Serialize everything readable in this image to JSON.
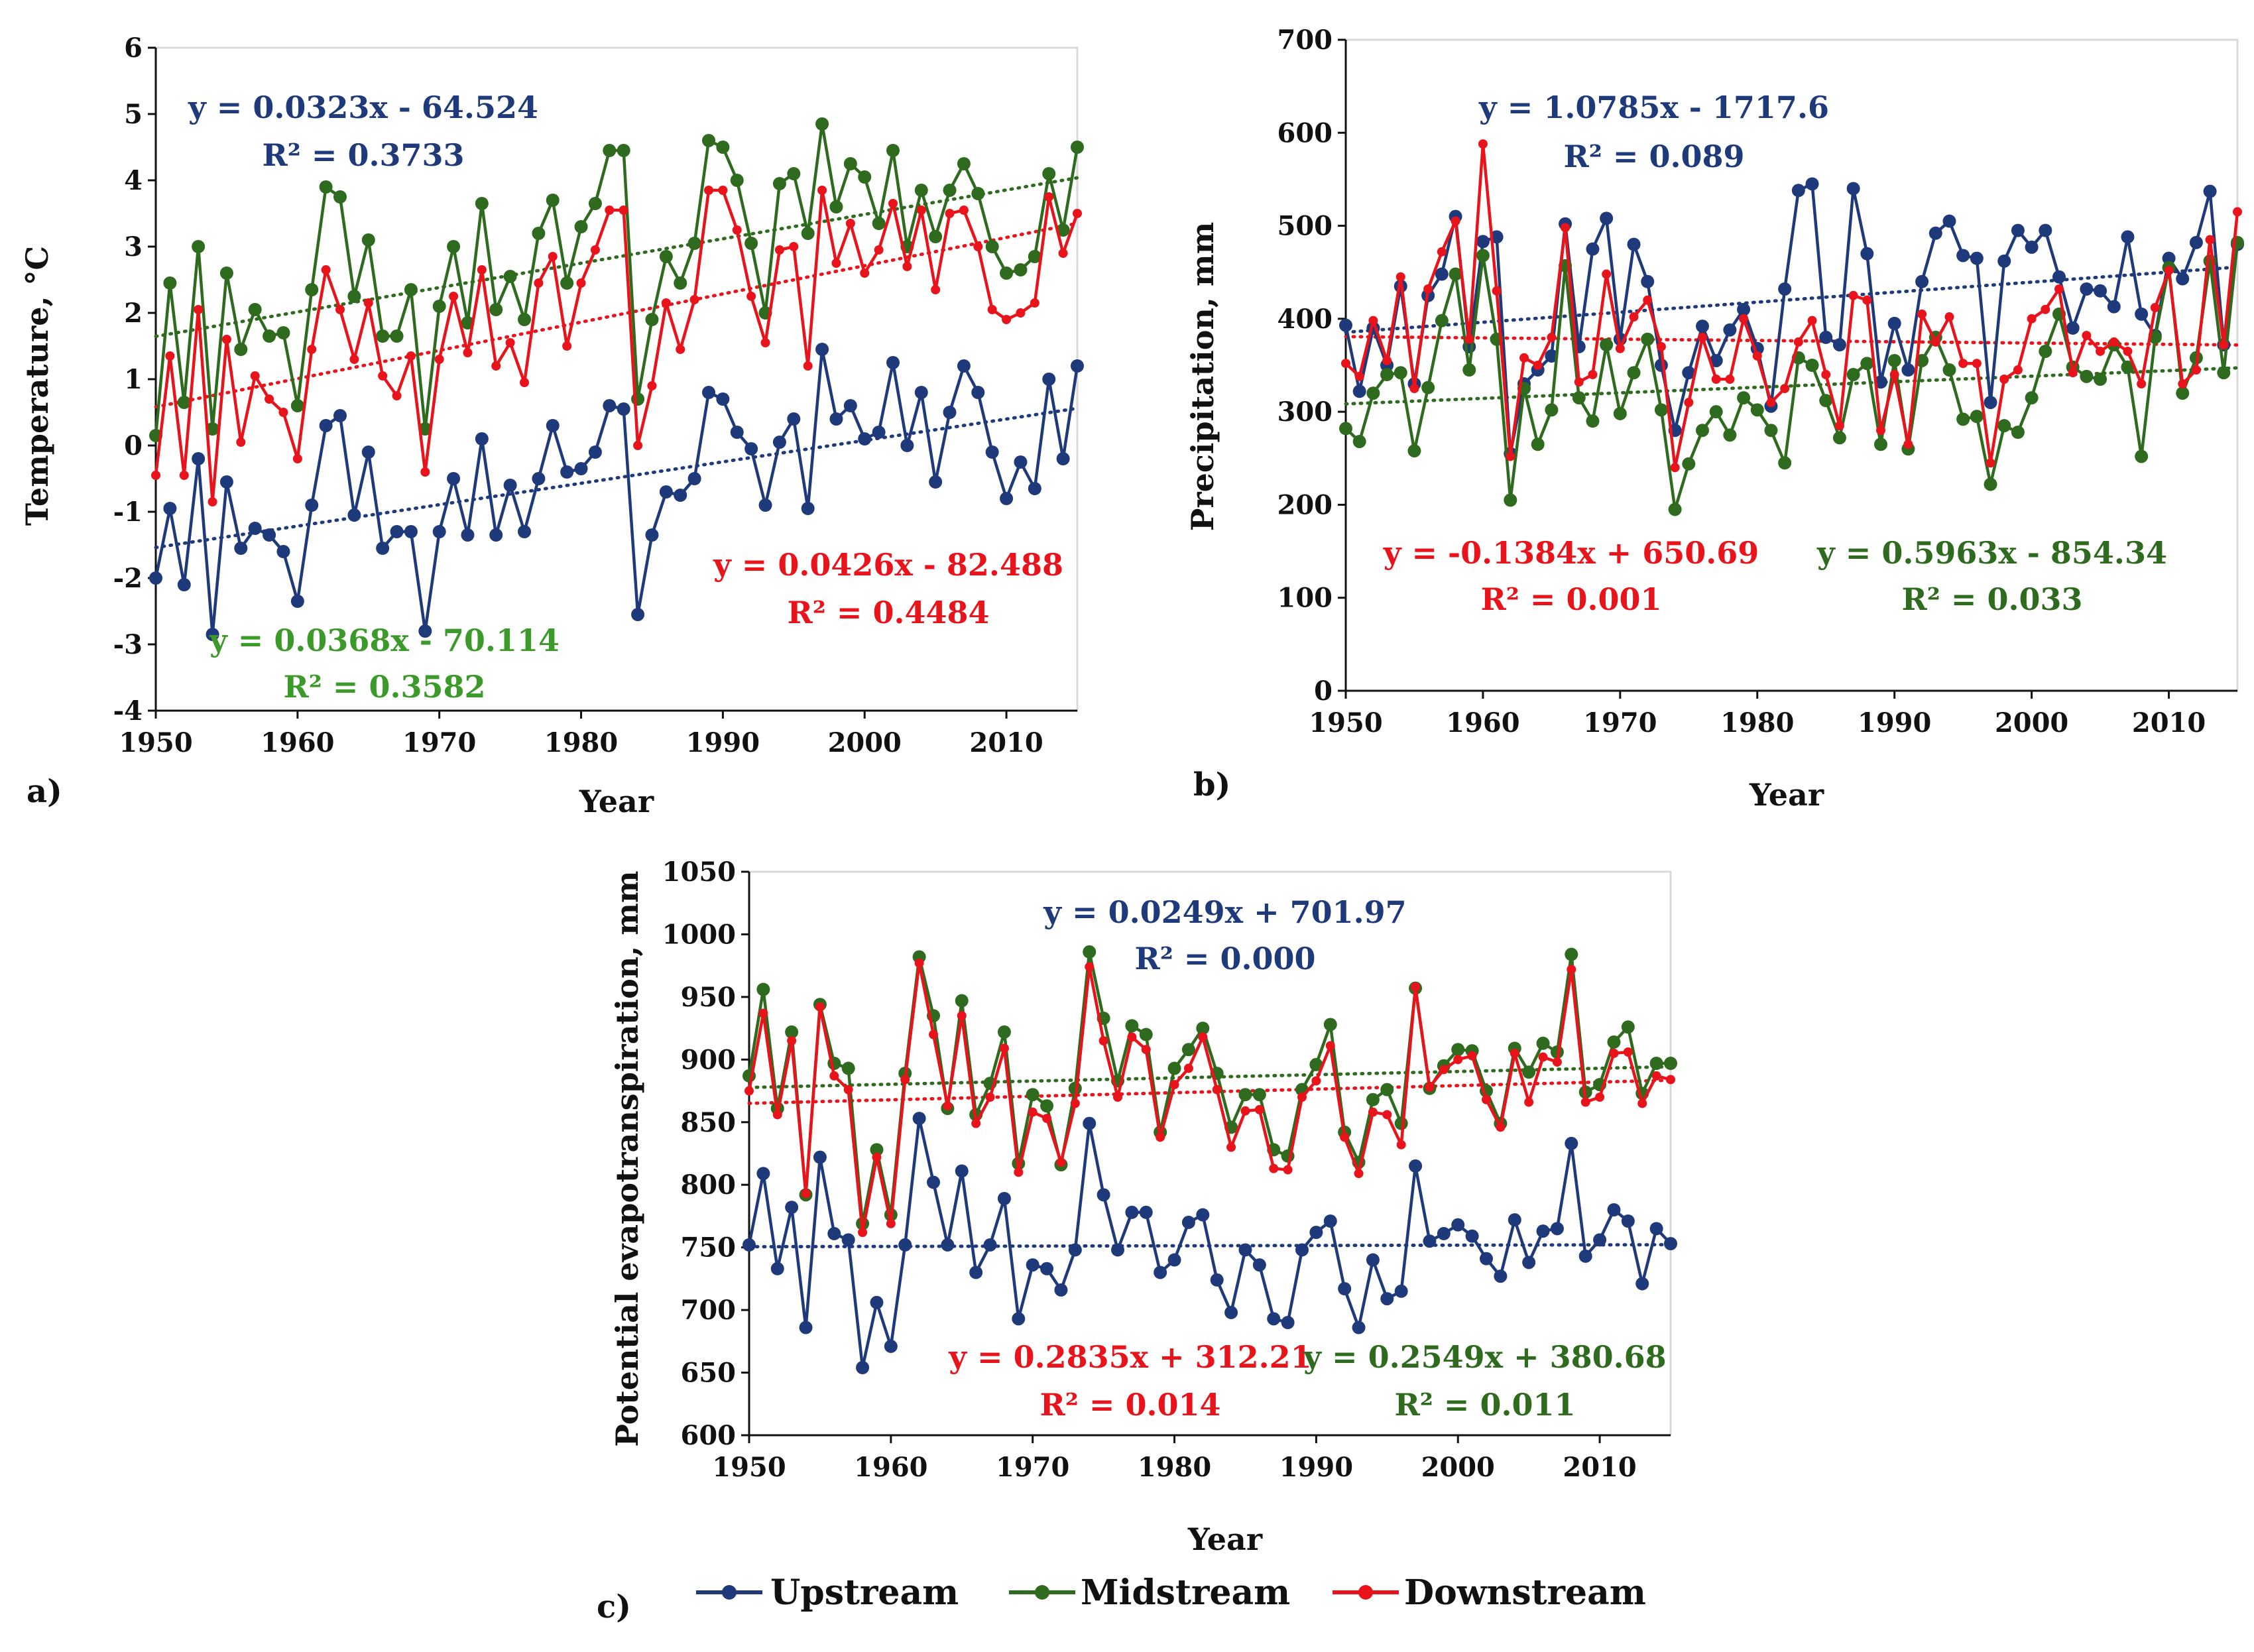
{
  "colors": {
    "Upstream": "#1f3a7a",
    "Midstream": "#2e6b1e",
    "Downstream": "#e8131b",
    "eq_mid_a": "#3c9a2a"
  },
  "legend": [
    "Upstream",
    "Midstream",
    "Downstream"
  ],
  "chart_data": [
    {
      "type": "line",
      "panel_label": "a)",
      "xlabel": "Year",
      "ylabel": "Temperature, °C",
      "xlim": [
        1950,
        2015
      ],
      "ylim": [
        -4,
        6
      ],
      "xticks": [
        1950,
        1960,
        1970,
        1980,
        1990,
        2000,
        2010
      ],
      "yticks": [
        -4,
        -3,
        -2,
        -1,
        0,
        1,
        2,
        3,
        4,
        5,
        6
      ],
      "x_start": 1950,
      "series": [
        {
          "name": "Upstream",
          "color_key": "Upstream",
          "values": [
            -2.0,
            -0.95,
            -2.1,
            -0.2,
            -2.85,
            -0.55,
            -1.55,
            -1.25,
            -1.35,
            -1.6,
            -2.35,
            -0.9,
            0.3,
            0.45,
            -1.05,
            -0.1,
            -1.55,
            -1.3,
            -1.3,
            -2.8,
            -1.3,
            -0.5,
            -1.35,
            0.1,
            -1.35,
            -0.6,
            -1.3,
            -0.5,
            0.3,
            -0.4,
            -0.35,
            -0.1,
            0.6,
            0.55,
            -2.55,
            -1.35,
            -0.7,
            -0.75,
            -0.5,
            0.8,
            0.7,
            0.2,
            -0.05,
            -0.9,
            0.05,
            0.4,
            -0.95,
            1.45,
            0.4,
            0.6,
            0.1,
            0.2,
            1.25,
            0.0,
            0.8,
            -0.55,
            0.5,
            1.2,
            0.8,
            -0.1,
            -0.8,
            -0.25,
            -0.65,
            1.0,
            -0.2,
            1.2
          ]
        },
        {
          "name": "Midstream",
          "color_key": "Midstream",
          "values": [
            0.15,
            2.45,
            0.65,
            3.0,
            0.25,
            2.6,
            1.45,
            2.05,
            1.65,
            1.7,
            0.6,
            2.35,
            3.9,
            3.75,
            2.25,
            3.1,
            1.65,
            1.65,
            2.35,
            0.25,
            2.1,
            3.0,
            1.85,
            3.65,
            2.05,
            2.55,
            1.9,
            3.2,
            3.7,
            2.45,
            3.3,
            3.65,
            4.45,
            4.45,
            0.7,
            1.9,
            2.85,
            2.45,
            3.05,
            4.6,
            4.5,
            4.0,
            3.05,
            2.0,
            3.95,
            4.1,
            3.2,
            4.85,
            3.6,
            4.25,
            4.05,
            3.35,
            4.45,
            3.0,
            3.85,
            3.15,
            3.85,
            4.25,
            3.8,
            3.0,
            2.6,
            2.65,
            2.85,
            4.1,
            3.25,
            4.5
          ]
        },
        {
          "name": "Downstream",
          "color_key": "Downstream",
          "values": [
            -0.45,
            1.35,
            -0.45,
            2.05,
            -0.85,
            1.6,
            0.05,
            1.05,
            0.7,
            0.5,
            -0.2,
            1.45,
            2.65,
            2.05,
            1.3,
            2.15,
            1.05,
            0.75,
            1.35,
            -0.4,
            1.3,
            2.25,
            1.4,
            2.65,
            1.2,
            1.55,
            0.95,
            2.45,
            2.85,
            1.5,
            2.45,
            2.95,
            3.55,
            3.55,
            0.0,
            0.9,
            2.15,
            1.45,
            2.2,
            3.85,
            3.85,
            3.25,
            2.25,
            1.55,
            2.95,
            3.0,
            1.2,
            3.85,
            2.75,
            3.35,
            2.6,
            2.95,
            3.65,
            2.7,
            3.55,
            2.35,
            3.5,
            3.55,
            3.0,
            2.05,
            1.9,
            2.0,
            2.15,
            3.75,
            2.9,
            3.5
          ]
        }
      ],
      "trendlines": [
        {
          "series": "Upstream",
          "equation": "y = 0.0323x - 64.524",
          "r2": "R² = 0.3733",
          "slope": 0.0323,
          "intercept": -64.524
        },
        {
          "series": "Midstream",
          "equation": "y = 0.0368x - 70.114",
          "r2": "R² = 0.3582",
          "slope": 0.0368,
          "intercept": -70.114
        },
        {
          "series": "Downstream",
          "equation": "y = 0.0426x - 82.488",
          "r2": "R² = 0.4484",
          "slope": 0.0426,
          "intercept": -82.488
        }
      ]
    },
    {
      "type": "line",
      "panel_label": "b)",
      "xlabel": "Year",
      "ylabel": "Precipitation,  mm",
      "xlim": [
        1950,
        2015
      ],
      "ylim": [
        0,
        700
      ],
      "xticks": [
        1950,
        1960,
        1970,
        1980,
        1990,
        2000,
        2010
      ],
      "yticks": [
        0,
        100,
        200,
        300,
        400,
        500,
        600,
        700
      ],
      "x_start": 1950,
      "series": [
        {
          "name": "Upstream",
          "color_key": "Upstream",
          "values": [
            393,
            322,
            390,
            350,
            435,
            330,
            425,
            448,
            510,
            370,
            483,
            488,
            255,
            330,
            345,
            360,
            502,
            370,
            475,
            508,
            378,
            480,
            440,
            350,
            280,
            342,
            392,
            355,
            388,
            410,
            368,
            306,
            432,
            538,
            545,
            380,
            372,
            540,
            470,
            332,
            395,
            345,
            440,
            492,
            505,
            468,
            465,
            310,
            462,
            495,
            477,
            495,
            445,
            390,
            432,
            430,
            413,
            488,
            405,
            382,
            465,
            443,
            482,
            537,
            372,
            480
          ]
        },
        {
          "name": "Midstream",
          "color_key": "Midstream",
          "values": [
            282,
            268,
            320,
            340,
            342,
            258,
            326,
            398,
            448,
            345,
            468,
            378,
            205,
            325,
            265,
            302,
            457,
            315,
            290,
            372,
            298,
            342,
            378,
            302,
            195,
            244,
            280,
            300,
            275,
            315,
            302,
            280,
            245,
            358,
            350,
            312,
            272,
            340,
            352,
            265,
            355,
            260,
            355,
            380,
            345,
            292,
            295,
            222,
            285,
            278,
            315,
            365,
            405,
            348,
            338,
            335,
            372,
            348,
            252,
            380,
            455,
            320,
            358,
            462,
            342,
            482
          ]
        },
        {
          "name": "Downstream",
          "color_key": "Downstream",
          "values": [
            352,
            338,
            398,
            355,
            445,
            325,
            432,
            472,
            505,
            378,
            588,
            430,
            252,
            358,
            350,
            380,
            498,
            332,
            340,
            448,
            368,
            402,
            420,
            370,
            240,
            310,
            380,
            335,
            335,
            400,
            360,
            310,
            325,
            375,
            398,
            340,
            285,
            425,
            420,
            280,
            340,
            265,
            405,
            375,
            402,
            352,
            352,
            245,
            335,
            345,
            400,
            410,
            432,
            342,
            382,
            365,
            375,
            365,
            330,
            412,
            452,
            330,
            345,
            485,
            372,
            515
          ]
        }
      ],
      "trendlines": [
        {
          "series": "Upstream",
          "equation": "y = 1.0785x - 1717.6",
          "r2": "R² = 0.089",
          "slope": 1.0785,
          "intercept": -1717.6
        },
        {
          "series": "Downstream",
          "equation": "y = -0.1384x + 650.69",
          "r2": "R² = 0.001",
          "slope": -0.1384,
          "intercept": 650.69
        },
        {
          "series": "Midstream",
          "equation": "y = 0.5963x - 854.34",
          "r2": "R² = 0.033",
          "slope": 0.5963,
          "intercept": -854.34
        }
      ]
    },
    {
      "type": "line",
      "panel_label": "c)",
      "xlabel": "Year",
      "ylabel": "Potential evapotranspiration, mm",
      "xlim": [
        1950,
        2015
      ],
      "ylim": [
        600,
        1050
      ],
      "xticks": [
        1950,
        1960,
        1970,
        1980,
        1990,
        2000,
        2010
      ],
      "yticks": [
        600,
        650,
        700,
        750,
        800,
        850,
        900,
        950,
        1000,
        1050
      ],
      "x_start": 1950,
      "series": [
        {
          "name": "Upstream",
          "color_key": "Upstream",
          "values": [
            752,
            809,
            733,
            782,
            686,
            822,
            761,
            756,
            654,
            706,
            671,
            752,
            853,
            802,
            752,
            811,
            730,
            752,
            789,
            693,
            736,
            733,
            716,
            748,
            849,
            792,
            748,
            778,
            778,
            730,
            740,
            770,
            776,
            724,
            698,
            748,
            736,
            693,
            690,
            748,
            762,
            771,
            717,
            686,
            740,
            709,
            715,
            815,
            755,
            761,
            768,
            759,
            741,
            727,
            772,
            738,
            763,
            765,
            833,
            743,
            756,
            780,
            771,
            721,
            765,
            753
          ]
        },
        {
          "name": "Midstream",
          "color_key": "Midstream",
          "values": [
            887,
            956,
            861,
            922,
            792,
            944,
            897,
            893,
            769,
            828,
            776,
            889,
            982,
            935,
            861,
            947,
            856,
            881,
            922,
            817,
            872,
            863,
            816,
            877,
            986,
            933,
            883,
            927,
            920,
            842,
            893,
            908,
            925,
            889,
            846,
            872,
            872,
            828,
            823,
            876,
            896,
            928,
            842,
            818,
            868,
            876,
            849,
            957,
            877,
            895,
            908,
            907,
            875,
            849,
            909,
            890,
            913,
            906,
            984,
            874,
            880,
            914,
            926,
            873,
            897,
            897
          ]
        },
        {
          "name": "Downstream",
          "color_key": "Downstream",
          "values": [
            875,
            937,
            856,
            915,
            793,
            942,
            887,
            876,
            762,
            822,
            769,
            884,
            977,
            920,
            863,
            935,
            849,
            870,
            909,
            810,
            858,
            853,
            818,
            865,
            974,
            915,
            870,
            918,
            908,
            838,
            880,
            893,
            918,
            876,
            830,
            859,
            860,
            813,
            812,
            870,
            883,
            911,
            838,
            809,
            858,
            856,
            832,
            958,
            878,
            892,
            900,
            903,
            868,
            846,
            905,
            866,
            902,
            898,
            972,
            866,
            870,
            905,
            906,
            865,
            887,
            884
          ]
        }
      ],
      "trendlines": [
        {
          "series": "Upstream",
          "equation": "y = 0.0249x + 701.97",
          "r2": "R² = 0.000",
          "slope": 0.0249,
          "intercept": 701.97
        },
        {
          "series": "Downstream",
          "equation": "y = 0.2835x + 312.21",
          "r2": "R² = 0.014",
          "slope": 0.2835,
          "intercept": 312.21
        },
        {
          "series": "Midstream",
          "equation": "y = 0.2549x + 380.68",
          "r2": "R² = 0.011",
          "slope": 0.2549,
          "intercept": 380.68
        }
      ]
    }
  ]
}
